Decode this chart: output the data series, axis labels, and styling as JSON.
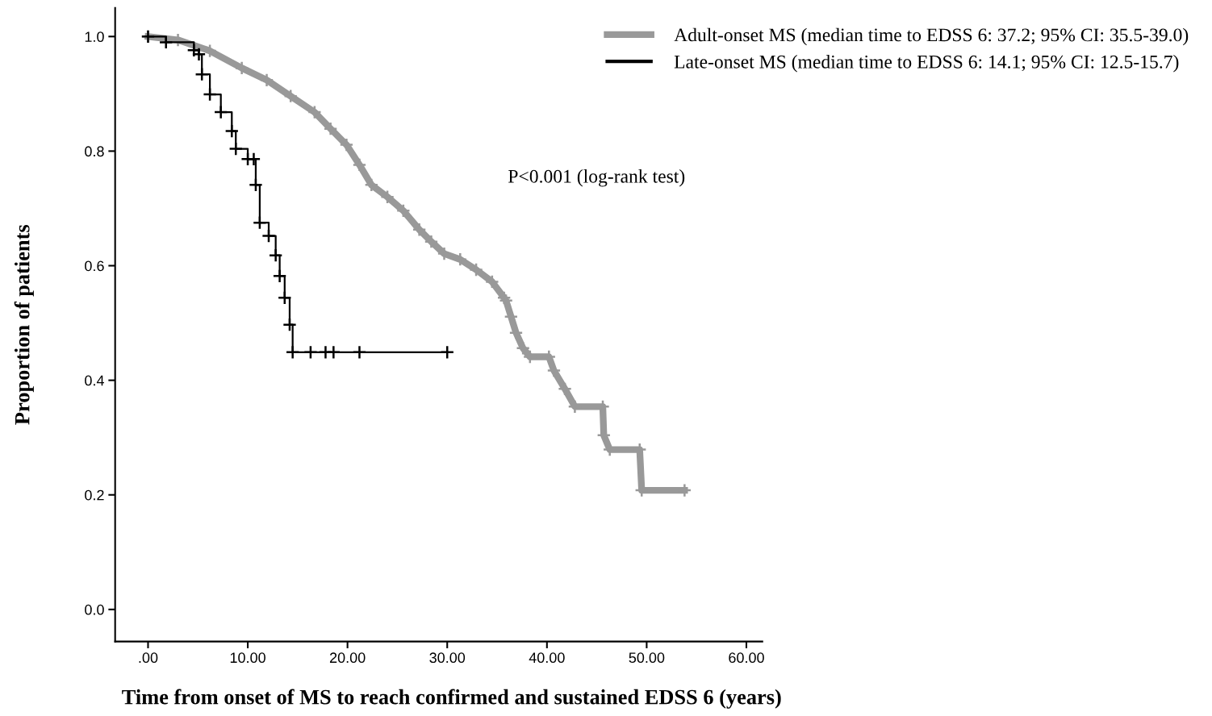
{
  "chart_data": {
    "type": "step",
    "xlabel": "Time from onset of MS to reach confirmed and sustained EDSS 6 (years)",
    "ylabel": "Proportion of patients",
    "annotations": [
      "P<0.001 (log-rank test)"
    ],
    "xlim": [
      -3.3,
      61.6
    ],
    "ylim": [
      -0.056,
      1.05
    ],
    "xticks": [
      {
        "value": 0,
        "label": ".00"
      },
      {
        "value": 10,
        "label": "10.00"
      },
      {
        "value": 20,
        "label": "20.00"
      },
      {
        "value": 30,
        "label": "30.00"
      },
      {
        "value": 40,
        "label": "40.00"
      },
      {
        "value": 50,
        "label": "50.00"
      },
      {
        "value": 60,
        "label": "60.00"
      }
    ],
    "yticks": [
      {
        "value": 0,
        "label": "0.0"
      },
      {
        "value": 0.2,
        "label": "0.2"
      },
      {
        "value": 0.4,
        "label": "0.4"
      },
      {
        "value": 0.6,
        "label": "0.6"
      },
      {
        "value": 0.8,
        "label": "0.8"
      },
      {
        "value": 1.0,
        "label": "1.0"
      }
    ],
    "grid": false,
    "legend": "top right",
    "marker": "cross",
    "line_style": "solid",
    "series": [
      {
        "name": "Adult-onset MS (median time to EDSS 6: 37.2; 95% CI: 35.5-39.0)",
        "color": "#999999",
        "type": "line",
        "x": [
          0,
          3.0,
          6.2,
          9.4,
          11.9,
          14.3,
          16.7,
          18.3,
          19.9,
          21.2,
          22.4,
          24.0,
          25.6,
          27.2,
          28.4,
          29.7,
          31.3,
          32.9,
          34.5,
          35.7,
          35.9,
          36.4,
          36.9,
          37.6,
          38.3,
          40.2,
          40.7,
          41.8,
          42.8,
          45.6,
          45.7,
          46.3,
          49.3,
          49.5,
          53.8
        ],
        "values": [
          1.0,
          0.994,
          0.975,
          0.945,
          0.924,
          0.896,
          0.868,
          0.839,
          0.811,
          0.776,
          0.741,
          0.72,
          0.696,
          0.663,
          0.642,
          0.621,
          0.611,
          0.593,
          0.572,
          0.544,
          0.539,
          0.511,
          0.483,
          0.456,
          0.441,
          0.441,
          0.417,
          0.385,
          0.354,
          0.354,
          0.304,
          0.279,
          0.279,
          0.208,
          0.208
        ]
      },
      {
        "name": "Late-onset MS (median time to EDSS 6: 14.1; 95% CI: 12.5-15.7)",
        "color": "#000000",
        "x": [
          0,
          1.8,
          4.6,
          5.1,
          5.4,
          6.2,
          7.3,
          8.4,
          8.8,
          10.0,
          10.6,
          10.8,
          11.2,
          12.1,
          12.8,
          13.2,
          13.7,
          14.2,
          14.5,
          16.3,
          17.8,
          18.6,
          21.2,
          30.0
        ],
        "values": [
          1.0,
          0.99,
          0.976,
          0.969,
          0.934,
          0.899,
          0.868,
          0.835,
          0.804,
          0.786,
          0.786,
          0.741,
          0.675,
          0.652,
          0.618,
          0.582,
          0.544,
          0.497,
          0.449,
          0.449,
          0.449,
          0.449,
          0.449,
          0.449
        ]
      }
    ]
  }
}
